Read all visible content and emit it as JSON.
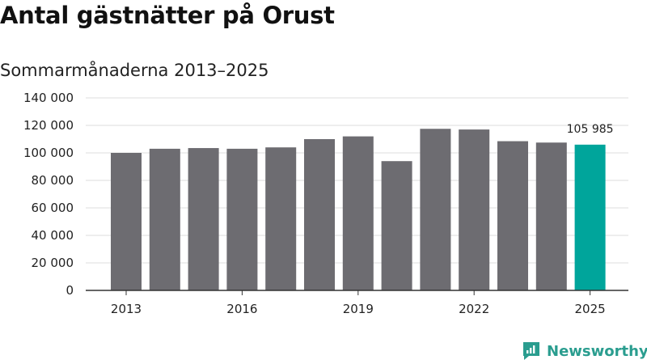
{
  "title": "Antal gästnätter på Orust",
  "subtitle": "Sommarmånaderna 2013–2025",
  "brand": {
    "name": "Newsworthy",
    "icon": "newsworthy-logo-icon",
    "color": "#2a9d8f"
  },
  "colors": {
    "bar": "#6d6c71",
    "highlight": "#00a59b",
    "grid": "#dddddd",
    "axis": "#333333"
  },
  "chart_data": {
    "type": "bar",
    "title": "Antal gästnätter på Orust",
    "subtitle": "Sommarmånaderna 2013–2025",
    "categories": [
      "2013",
      "2014",
      "2015",
      "2016",
      "2017",
      "2018",
      "2019",
      "2020",
      "2021",
      "2022",
      "2023",
      "2024",
      "2025"
    ],
    "values": [
      100000,
      103000,
      103500,
      103000,
      104000,
      110000,
      112000,
      94000,
      117500,
      117000,
      108500,
      107500,
      105985
    ],
    "highlight": {
      "category": "2025",
      "label": "105 985"
    },
    "xticks": [
      "2013",
      "2016",
      "2019",
      "2022",
      "2025"
    ],
    "yticks": [
      "0",
      "20 000",
      "40 000",
      "60 000",
      "80 000",
      "100 000",
      "120 000",
      "140 000"
    ],
    "ylim": [
      0,
      140000
    ],
    "xlabel": "",
    "ylabel": "",
    "grid": true,
    "legend": "none"
  }
}
